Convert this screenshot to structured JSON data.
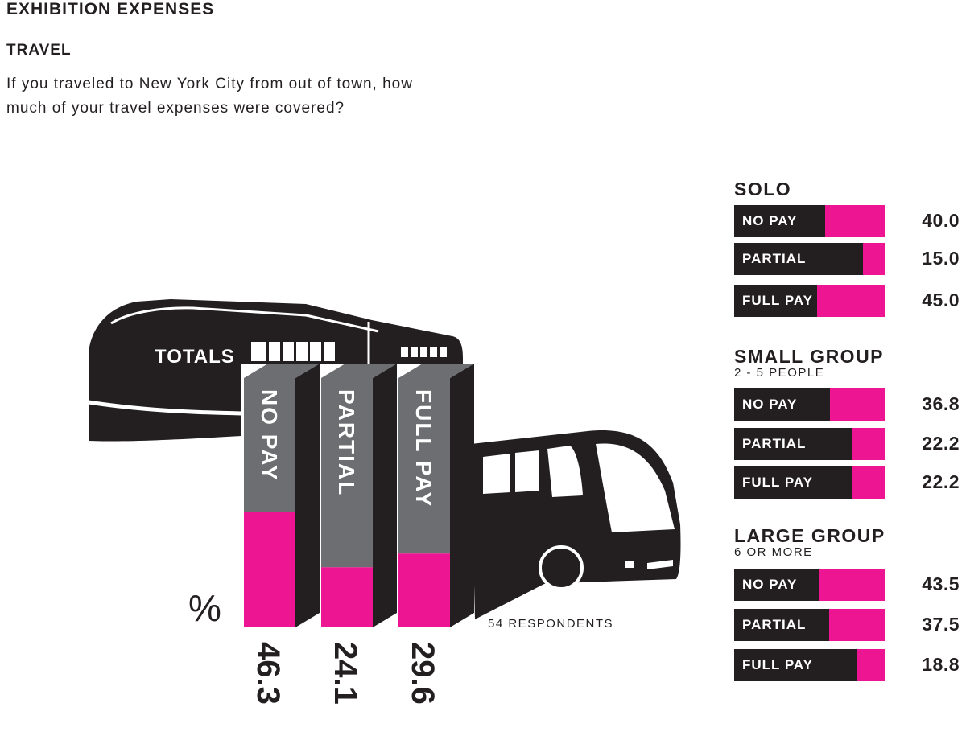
{
  "header": {
    "title": "EXHIBITION EXPENSES",
    "section": "TRAVEL",
    "question": "If you traveled to New York City from out of town, how much of your travel expenses were covered?"
  },
  "colors": {
    "accent": "#ed1591",
    "dark": "#231f20",
    "gray": "#6d6e71"
  },
  "chart_data": [
    {
      "type": "bar",
      "title": "TOTALS",
      "unit": "%",
      "note": "54 RESPONDENTS",
      "categories": [
        "NO PAY",
        "PARTIAL",
        "FULL PAY"
      ],
      "values": [
        46.3,
        24.1,
        29.6
      ],
      "value_labels": [
        "46.3",
        "24.1",
        "29.6"
      ]
    },
    {
      "type": "bar",
      "title": "SOLO",
      "categories": [
        "NO PAY",
        "PARTIAL",
        "FULL PAY"
      ],
      "values": [
        40.0,
        15.0,
        45.0
      ],
      "value_labels": [
        "40.0",
        "15.0",
        "45.0"
      ]
    },
    {
      "type": "bar",
      "title": "SMALL GROUP",
      "subtitle": "2 - 5 PEOPLE",
      "categories": [
        "NO PAY",
        "PARTIAL",
        "FULL PAY"
      ],
      "values": [
        36.8,
        22.2,
        22.2
      ],
      "value_labels": [
        "36.8",
        "22.2",
        "22.2"
      ]
    },
    {
      "type": "bar",
      "title": "LARGE GROUP",
      "subtitle": "6 OR MORE",
      "categories": [
        "NO PAY",
        "PARTIAL",
        "FULL PAY"
      ],
      "values": [
        43.5,
        37.5,
        18.8
      ],
      "value_labels": [
        "43.5",
        "37.5",
        "18.8"
      ]
    }
  ]
}
